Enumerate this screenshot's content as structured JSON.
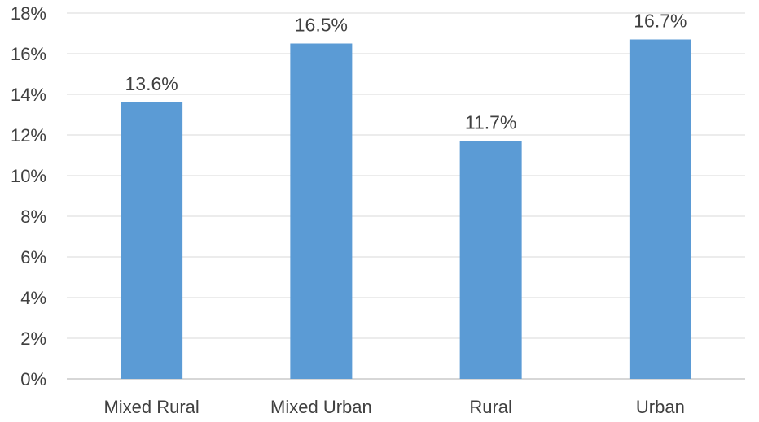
{
  "chart_data": {
    "type": "bar",
    "title": "",
    "xlabel": "",
    "ylabel": "",
    "categories": [
      "Mixed Rural",
      "Mixed Urban",
      "Rural",
      "Urban"
    ],
    "values": [
      13.6,
      16.5,
      11.7,
      16.7
    ],
    "data_labels": [
      "13.6%",
      "16.5%",
      "11.7%",
      "16.7%"
    ],
    "ylim": [
      0,
      18
    ],
    "y_ticks": [
      0,
      2,
      4,
      6,
      8,
      10,
      12,
      14,
      16,
      18
    ],
    "y_tick_labels": [
      "0%",
      "2%",
      "4%",
      "6%",
      "8%",
      "10%",
      "12%",
      "14%",
      "16%",
      "18%"
    ],
    "bar_color": "#5b9bd5",
    "grid": true,
    "legend": "none"
  }
}
